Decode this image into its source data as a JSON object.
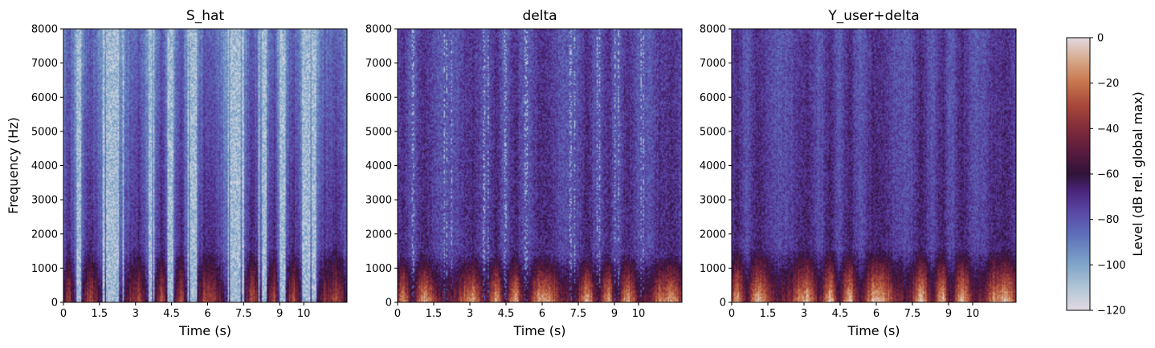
{
  "chart_data": [
    {
      "type": "heatmap",
      "title": "S_hat",
      "xlabel": "Time (s)",
      "ylabel": "Frequency (Hz)",
      "xlim": [
        0,
        11.8
      ],
      "ylim": [
        0,
        8000
      ],
      "xticks": [
        "0",
        "1.5",
        "3",
        "4.5",
        "6",
        "7.5",
        "9",
        "10"
      ],
      "yticks": [
        "0",
        "1000",
        "2000",
        "3000",
        "4000",
        "5000",
        "6000",
        "7000",
        "8000"
      ]
    },
    {
      "type": "heatmap",
      "title": "delta",
      "xlabel": "Time (s)",
      "ylabel": "",
      "xlim": [
        0,
        11.8
      ],
      "ylim": [
        0,
        8000
      ],
      "xticks": [
        "0",
        "1.5",
        "3",
        "4.5",
        "6",
        "7.5",
        "9",
        "10"
      ],
      "yticks": [
        "0",
        "1000",
        "2000",
        "3000",
        "4000",
        "5000",
        "6000",
        "7000",
        "8000"
      ]
    },
    {
      "type": "heatmap",
      "title": "Y_user+delta",
      "xlabel": "Time (s)",
      "ylabel": "",
      "xlim": [
        0,
        11.8
      ],
      "ylim": [
        0,
        8000
      ],
      "xticks": [
        "0",
        "1.5",
        "3",
        "4.5",
        "6",
        "7.5",
        "9",
        "10"
      ],
      "yticks": [
        "0",
        "1000",
        "2000",
        "3000",
        "4000",
        "5000",
        "6000",
        "7000",
        "8000"
      ]
    }
  ],
  "colorbar": {
    "label": "Level (dB rel. global max)",
    "range": [
      -120,
      0
    ],
    "ticks": [
      "0",
      "−20",
      "−40",
      "−60",
      "−80",
      "−100",
      "−120"
    ],
    "colormap": "twilight_shifted"
  }
}
